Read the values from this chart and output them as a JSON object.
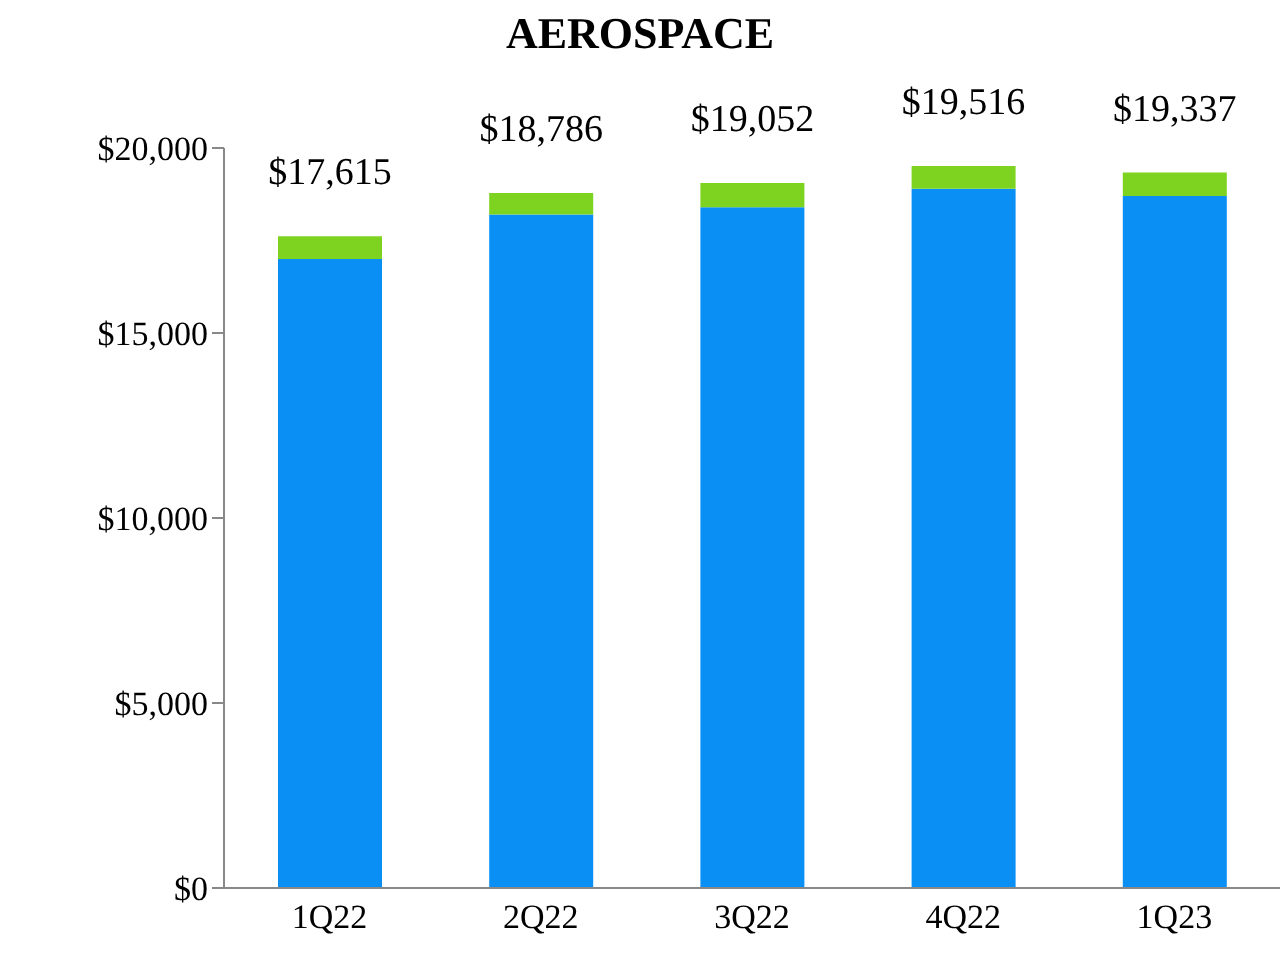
{
  "chart_data": {
    "type": "bar",
    "title": "AEROSPACE",
    "stacked": true,
    "categories": [
      "1Q22",
      "2Q22",
      "3Q22",
      "4Q22",
      "1Q23"
    ],
    "series": [
      {
        "color": "#0a8ff5",
        "values": [
          17000,
          18200,
          18400,
          18900,
          18700
        ]
      },
      {
        "color": "#7ed321",
        "values": [
          615,
          586,
          652,
          616,
          637
        ]
      }
    ],
    "totals": [
      "$17,615",
      "$18,786",
      "$19,052",
      "$19,516",
      "$19,337"
    ],
    "ylim": [
      0,
      20000
    ],
    "yticks": [
      {
        "value": 0,
        "label": "$0"
      },
      {
        "value": 5000,
        "label": "$5,000"
      },
      {
        "value": 10000,
        "label": "$10,000"
      },
      {
        "value": 15000,
        "label": "$15,000"
      },
      {
        "value": 20000,
        "label": "$20,000"
      }
    ],
    "grid": false,
    "legend": false
  }
}
